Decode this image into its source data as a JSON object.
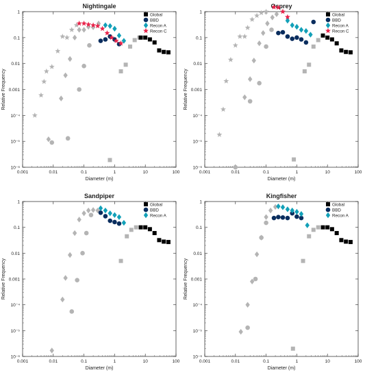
{
  "colors": {
    "Global": "#000000",
    "BBD": "#0a2d5e",
    "Recon A": "#12a0b8",
    "Recon C": "#e8234a",
    "unlabeled": "#b4b4b4"
  },
  "chart_data": [
    {
      "type": "scatter",
      "title": "Nightingale",
      "xlabel": "Diameter (m)",
      "ylabel": "Relative Frequency",
      "xscale": "log",
      "yscale": "log",
      "xlim": [
        0.001,
        100
      ],
      "ylim": [
        1e-06,
        1
      ],
      "x_ticks": [
        "0.001",
        "0.01",
        "0.1",
        "1",
        "10",
        "100"
      ],
      "y_ticks": [
        "1",
        "0.1",
        "0.01",
        "0.001",
        "10⁻⁴",
        "10⁻⁵",
        "10⁻⁶"
      ],
      "grid": false,
      "legend": "top-right",
      "series": [
        {
          "name": "Global",
          "marker": "square",
          "points": [
            [
              7.1,
              0.1
            ],
            [
              10,
              0.1
            ],
            [
              14.1,
              0.085
            ],
            [
              20,
              0.065
            ],
            [
              28.3,
              0.032
            ],
            [
              40,
              0.028
            ],
            [
              56.6,
              0.027
            ]
          ]
        },
        {
          "name": "BBD",
          "marker": "circle",
          "points": [
            [
              0.35,
              0.075
            ],
            [
              0.5,
              0.085
            ],
            [
              0.71,
              0.11
            ],
            [
              1,
              0.085
            ],
            [
              1.4,
              0.056
            ]
          ]
        },
        {
          "name": "Recon A",
          "marker": "diamond",
          "points": [
            [
              0.5,
              0.3
            ],
            [
              0.71,
              0.28
            ],
            [
              1,
              0.22
            ],
            [
              1.4,
              0.12
            ],
            [
              2,
              0.075
            ]
          ]
        },
        {
          "name": "Recon C",
          "marker": "star",
          "points": [
            [
              0.07,
              0.35
            ],
            [
              0.1,
              0.35
            ],
            [
              0.14,
              0.32
            ],
            [
              0.2,
              0.3
            ],
            [
              0.28,
              0.28
            ],
            [
              0.4,
              0.22
            ],
            [
              0.57,
              0.15
            ],
            [
              0.8,
              0.1
            ],
            [
              1.13,
              0.075
            ],
            [
              1.6,
              0.06
            ]
          ]
        },
        {
          "marker": "star",
          "unlabeled": true,
          "points": [
            [
              0.0025,
              0.0001
            ],
            [
              0.004,
              0.0006
            ],
            [
              0.005,
              0.002
            ],
            [
              0.006,
              0.005
            ],
            [
              0.009,
              0.0075
            ],
            [
              0.014,
              0.03
            ],
            [
              0.02,
              0.11
            ],
            [
              0.028,
              0.1
            ],
            [
              0.04,
              0.2
            ],
            [
              0.057,
              0.3
            ]
          ]
        },
        {
          "marker": "diamond",
          "unlabeled": true,
          "points": [
            [
              0.007,
              1.2e-05
            ],
            [
              0.018,
              0.00045
            ],
            [
              0.025,
              0.0035
            ],
            [
              0.035,
              0.015
            ],
            [
              0.05,
              0.1
            ],
            [
              0.07,
              0.2
            ],
            [
              0.1,
              0.2
            ],
            [
              0.14,
              0.26
            ],
            [
              0.2,
              0.25
            ],
            [
              0.3,
              0.35
            ]
          ]
        },
        {
          "marker": "circle",
          "unlabeled": true,
          "points": [
            [
              0.009,
              9e-06
            ],
            [
              0.03,
              1.3e-05
            ],
            [
              0.07,
              0.001
            ],
            [
              0.1,
              0.008
            ],
            [
              0.15,
              0.05
            ]
          ]
        },
        {
          "marker": "square",
          "unlabeled": true,
          "points": [
            [
              0.7,
              1.9e-06
            ],
            [
              1.6,
              0.005
            ],
            [
              2.3,
              0.009
            ],
            [
              3.2,
              0.045
            ],
            [
              4.5,
              0.08
            ],
            [
              6.4,
              0.1
            ]
          ]
        }
      ]
    },
    {
      "type": "scatter",
      "title": "Osprey",
      "xlabel": "Diameter (m)",
      "ylabel": "Relative Frequency",
      "xscale": "log",
      "yscale": "log",
      "xlim": [
        0.001,
        100
      ],
      "ylim": [
        1e-06,
        1
      ],
      "x_ticks": [
        "0.001",
        "0.01",
        "0.1",
        "1",
        "10",
        "100"
      ],
      "y_ticks": [
        "1",
        "0.1",
        "0.01",
        "0.001",
        "10⁻⁴",
        "10⁻⁵",
        "10⁻⁶"
      ],
      "grid": false,
      "legend": "top-right",
      "series": [
        {
          "name": "Global",
          "marker": "square",
          "points": [
            [
              7.1,
              0.12
            ],
            [
              10,
              0.1
            ],
            [
              14.1,
              0.085
            ],
            [
              20,
              0.06
            ],
            [
              28.3,
              0.032
            ],
            [
              40,
              0.028
            ],
            [
              56.6,
              0.027
            ]
          ]
        },
        {
          "name": "BBD",
          "marker": "circle",
          "points": [
            [
              0.25,
              0.15
            ],
            [
              0.35,
              0.16
            ],
            [
              0.5,
              0.11
            ],
            [
              0.71,
              0.09
            ],
            [
              1,
              0.1
            ],
            [
              1.4,
              0.085
            ],
            [
              2,
              0.065
            ],
            [
              3.5,
              0.4
            ]
          ]
        },
        {
          "name": "Recon A",
          "marker": "diamond",
          "points": [
            [
              0.5,
              0.45
            ],
            [
              0.71,
              0.3
            ],
            [
              1,
              0.26
            ],
            [
              1.4,
              0.2
            ],
            [
              2,
              0.18
            ],
            [
              2.8,
              0.13
            ]
          ]
        },
        {
          "name": "Recon C",
          "marker": "star",
          "points": [
            [
              0.18,
              1.5
            ],
            [
              0.25,
              1.45
            ],
            [
              0.35,
              1
            ],
            [
              0.5,
              0.62
            ]
          ]
        },
        {
          "marker": "star",
          "unlabeled": true,
          "points": [
            [
              0.003,
              1.8e-05
            ],
            [
              0.004,
              0.00017
            ],
            [
              0.005,
              0.0021
            ],
            [
              0.007,
              0.014
            ],
            [
              0.01,
              0.05
            ],
            [
              0.014,
              0.11
            ],
            [
              0.02,
              0.11
            ],
            [
              0.025,
              0.24
            ],
            [
              0.035,
              0.5
            ],
            [
              0.05,
              0.7
            ],
            [
              0.07,
              0.9
            ],
            [
              0.1,
              1
            ]
          ]
        },
        {
          "marker": "diamond",
          "unlabeled": true,
          "points": [
            [
              0.02,
              0.0005
            ],
            [
              0.03,
              0.0025
            ],
            [
              0.04,
              0.013
            ],
            [
              0.06,
              0.06
            ],
            [
              0.08,
              0.15
            ],
            [
              0.11,
              0.35
            ],
            [
              0.16,
              0.6
            ],
            [
              0.22,
              0.8
            ]
          ]
        },
        {
          "marker": "circle",
          "unlabeled": true,
          "points": [
            [
              0.01,
              1e-06
            ],
            [
              0.03,
              0.00035
            ],
            [
              0.06,
              0.00175
            ],
            [
              0.1,
              0.045
            ],
            [
              0.15,
              0.2
            ]
          ]
        },
        {
          "marker": "square",
          "unlabeled": true,
          "points": [
            [
              0.8,
              2e-06
            ],
            [
              1.8,
              0.005
            ],
            [
              2.5,
              0.009
            ],
            [
              3.5,
              0.045
            ],
            [
              5,
              0.08
            ]
          ]
        }
      ]
    },
    {
      "type": "scatter",
      "title": "Sandpiper",
      "xlabel": "Diameter (m)",
      "ylabel": "Relative Frequency",
      "xscale": "log",
      "yscale": "log",
      "xlim": [
        0.001,
        100
      ],
      "ylim": [
        1e-06,
        1
      ],
      "x_ticks": [
        "0.001",
        "0.01",
        "0.1",
        "1",
        "10",
        "100"
      ],
      "y_ticks": [
        "1",
        "0.1",
        "0.01",
        "0.001",
        "10⁻⁴",
        "10⁻⁵",
        "10⁻⁶"
      ],
      "grid": false,
      "legend": "top-right",
      "series": [
        {
          "name": "Global",
          "marker": "square",
          "points": [
            [
              7.1,
              0.1
            ],
            [
              10,
              0.1
            ],
            [
              14.1,
              0.085
            ],
            [
              20,
              0.06
            ],
            [
              28.3,
              0.032
            ],
            [
              40,
              0.028
            ],
            [
              56.6,
              0.027
            ]
          ]
        },
        {
          "name": "BBD",
          "marker": "circle",
          "points": [
            [
              0.35,
              0.37
            ],
            [
              0.5,
              0.27
            ],
            [
              0.71,
              0.18
            ],
            [
              1,
              0.16
            ],
            [
              1.4,
              0.14
            ]
          ]
        },
        {
          "name": "Recon A",
          "marker": "diamond",
          "points": [
            [
              0.35,
              0.55
            ],
            [
              0.5,
              0.45
            ],
            [
              0.71,
              0.35
            ],
            [
              1,
              0.3
            ],
            [
              1.4,
              0.25
            ],
            [
              2,
              0.15
            ]
          ]
        },
        {
          "marker": "diamond",
          "unlabeled": true,
          "points": [
            [
              0.009,
              1.7e-06
            ],
            [
              0.02,
              0.00016
            ],
            [
              0.025,
              0.0011
            ],
            [
              0.035,
              0.0085
            ],
            [
              0.05,
              0.06
            ],
            [
              0.07,
              0.2
            ],
            [
              0.1,
              0.35
            ],
            [
              0.14,
              0.45
            ],
            [
              0.2,
              0.47
            ],
            [
              0.28,
              0.45
            ]
          ]
        },
        {
          "marker": "circle",
          "unlabeled": true,
          "points": [
            [
              0.04,
              5.5e-05
            ],
            [
              0.06,
              0.0009
            ],
            [
              0.09,
              0.01
            ],
            [
              0.12,
              0.06
            ],
            [
              0.17,
              0.3
            ]
          ]
        },
        {
          "marker": "square",
          "unlabeled": true,
          "points": [
            [
              1.6,
              0.005
            ],
            [
              2.5,
              0.045
            ],
            [
              3.5,
              0.08
            ],
            [
              5,
              0.1
            ]
          ]
        }
      ]
    },
    {
      "type": "scatter",
      "title": "Kingfisher",
      "xlabel": "Diameter (m)",
      "ylabel": "Relative Frequency",
      "xscale": "log",
      "yscale": "log",
      "xlim": [
        0.001,
        100
      ],
      "ylim": [
        1e-06,
        1
      ],
      "x_ticks": [
        "0.001",
        "0.01",
        "0.1",
        "1",
        "10",
        "100"
      ],
      "y_ticks": [
        "1",
        "0.1",
        "0.01",
        "0.001",
        "10⁻⁴",
        "10⁻⁵",
        "10⁻⁶"
      ],
      "grid": false,
      "legend": "top-right",
      "series": [
        {
          "name": "Global",
          "marker": "square",
          "points": [
            [
              7.1,
              0.1
            ],
            [
              10,
              0.1
            ],
            [
              14.1,
              0.085
            ],
            [
              20,
              0.06
            ],
            [
              28.3,
              0.032
            ],
            [
              40,
              0.028
            ],
            [
              56.6,
              0.027
            ]
          ]
        },
        {
          "name": "BBD",
          "marker": "circle",
          "points": [
            [
              0.18,
              0.23
            ],
            [
              0.25,
              0.25
            ],
            [
              0.35,
              0.24
            ],
            [
              0.5,
              0.23
            ],
            [
              0.71,
              0.35
            ],
            [
              1,
              0.26
            ],
            [
              1.4,
              0.23
            ]
          ]
        },
        {
          "name": "Recon A",
          "marker": "diamond",
          "points": [
            [
              0.25,
              0.65
            ],
            [
              0.35,
              0.6
            ],
            [
              0.5,
              0.5
            ],
            [
              0.71,
              0.45
            ],
            [
              1,
              0.4
            ],
            [
              1.4,
              0.33
            ],
            [
              2.2,
              0.12
            ]
          ]
        },
        {
          "marker": "diamond",
          "unlabeled": true,
          "points": [
            [
              0.015,
              9e-06
            ],
            [
              0.025,
              0.0001
            ],
            [
              0.035,
              0.0008
            ],
            [
              0.05,
              0.009
            ],
            [
              0.07,
              0.04
            ],
            [
              0.1,
              0.25
            ],
            [
              0.14,
              0.45
            ],
            [
              0.2,
              0.62
            ]
          ]
        },
        {
          "marker": "circle",
          "unlabeled": true,
          "points": [
            [
              0.025,
              1.3e-05
            ],
            [
              0.045,
              0.001
            ],
            [
              0.07,
              0.04
            ],
            [
              0.1,
              0.15
            ]
          ]
        },
        {
          "marker": "square",
          "unlabeled": true,
          "points": [
            [
              0.75,
              2e-06
            ],
            [
              1.6,
              0.005
            ],
            [
              2.5,
              0.045
            ],
            [
              3.5,
              0.08
            ],
            [
              5,
              0.1
            ]
          ]
        }
      ]
    }
  ]
}
